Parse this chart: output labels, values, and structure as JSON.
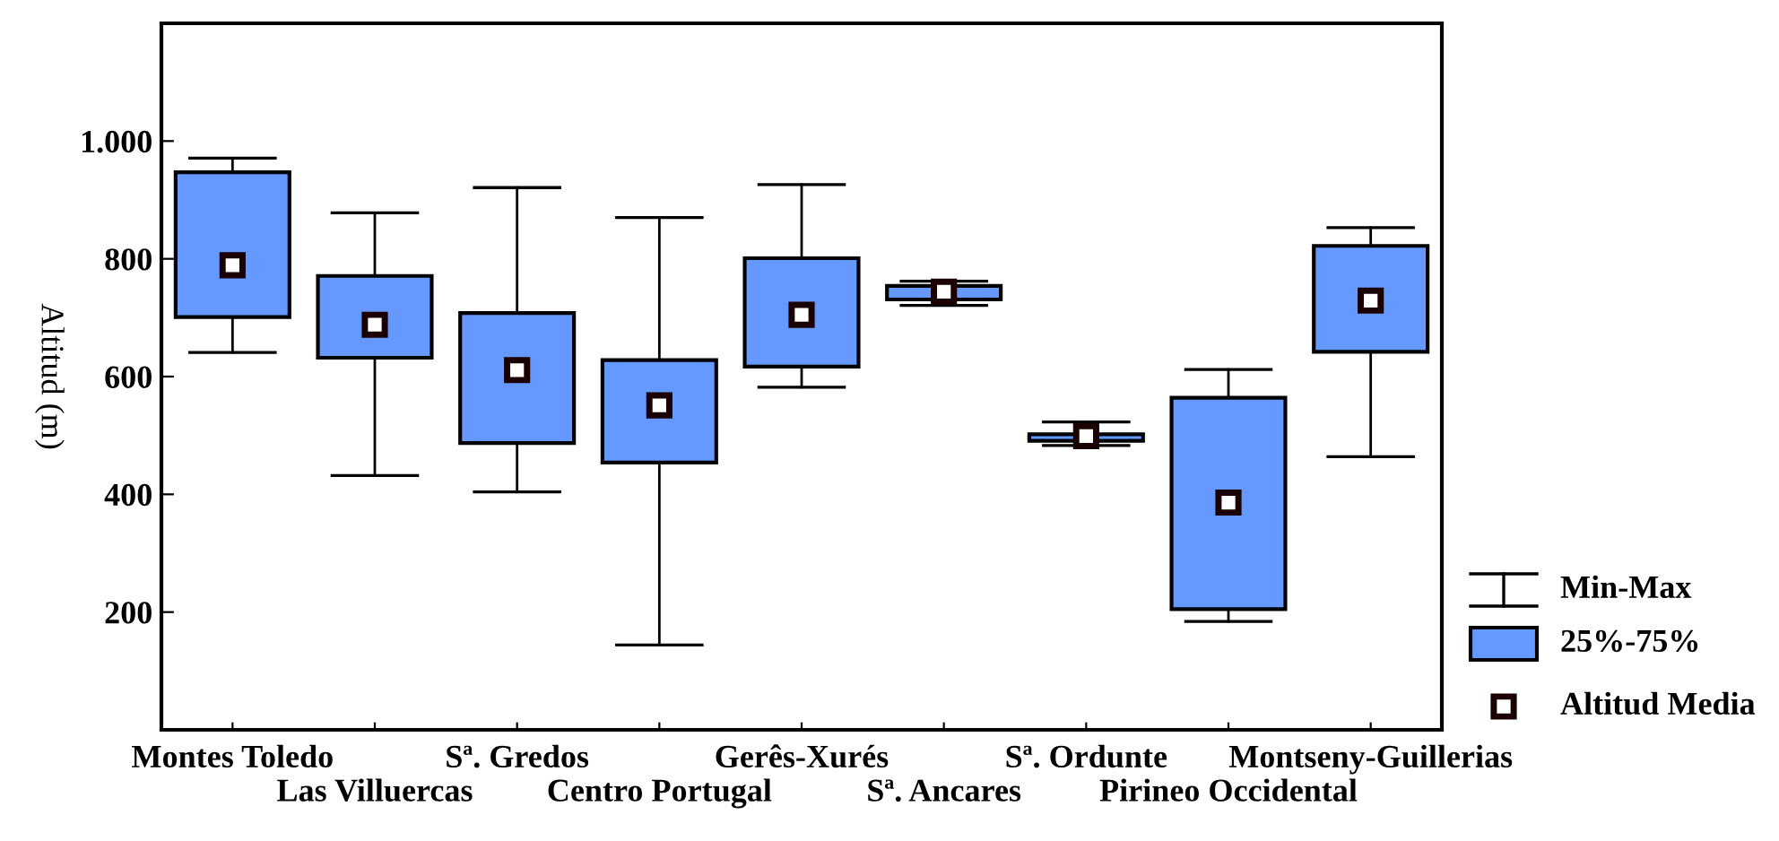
{
  "chart_data": {
    "type": "box",
    "ylabel": "Altitud (m)",
    "categories": [
      "Montes Toledo",
      "Las Villuercas",
      "Sª. Gredos",
      "Centro Portugal",
      "Gerês-Xurés",
      "Sª. Ancares",
      "Sª. Ordunte",
      "Pirineo Occidental",
      "Montseny-Guillerias"
    ],
    "boxes": [
      {
        "low": 641,
        "q1": 701,
        "q3": 947,
        "high": 971,
        "mean": 789
      },
      {
        "low": 432,
        "q1": 632,
        "q3": 771,
        "high": 878,
        "mean": 688
      },
      {
        "low": 404,
        "q1": 487,
        "q3": 708,
        "high": 921,
        "mean": 611
      },
      {
        "low": 144,
        "q1": 454,
        "q3": 628,
        "high": 870,
        "mean": 551
      },
      {
        "low": 582,
        "q1": 617,
        "q3": 801,
        "high": 926,
        "mean": 705
      },
      {
        "low": 721,
        "q1": 731,
        "q3": 754,
        "high": 762,
        "mean": 744
      },
      {
        "low": 483,
        "q1": 491,
        "q3": 502,
        "high": 523,
        "mean": 499
      },
      {
        "low": 184,
        "q1": 205,
        "q3": 564,
        "high": 612,
        "mean": 386
      },
      {
        "low": 464,
        "q1": 642,
        "q3": 822,
        "high": 853,
        "mean": 729
      }
    ],
    "color": "#6699ff",
    "ylim": [
      0,
      1200
    ],
    "yticks": [
      {
        "value": 200,
        "label": "200"
      },
      {
        "value": 400,
        "label": "400"
      },
      {
        "value": 600,
        "label": "600"
      },
      {
        "value": 800,
        "label": "800"
      },
      {
        "value": 1000,
        "label": "1.000"
      }
    ],
    "grid": false,
    "annotations": [
      "Min-Max",
      "25%-75%",
      "Altitud Media"
    ]
  }
}
